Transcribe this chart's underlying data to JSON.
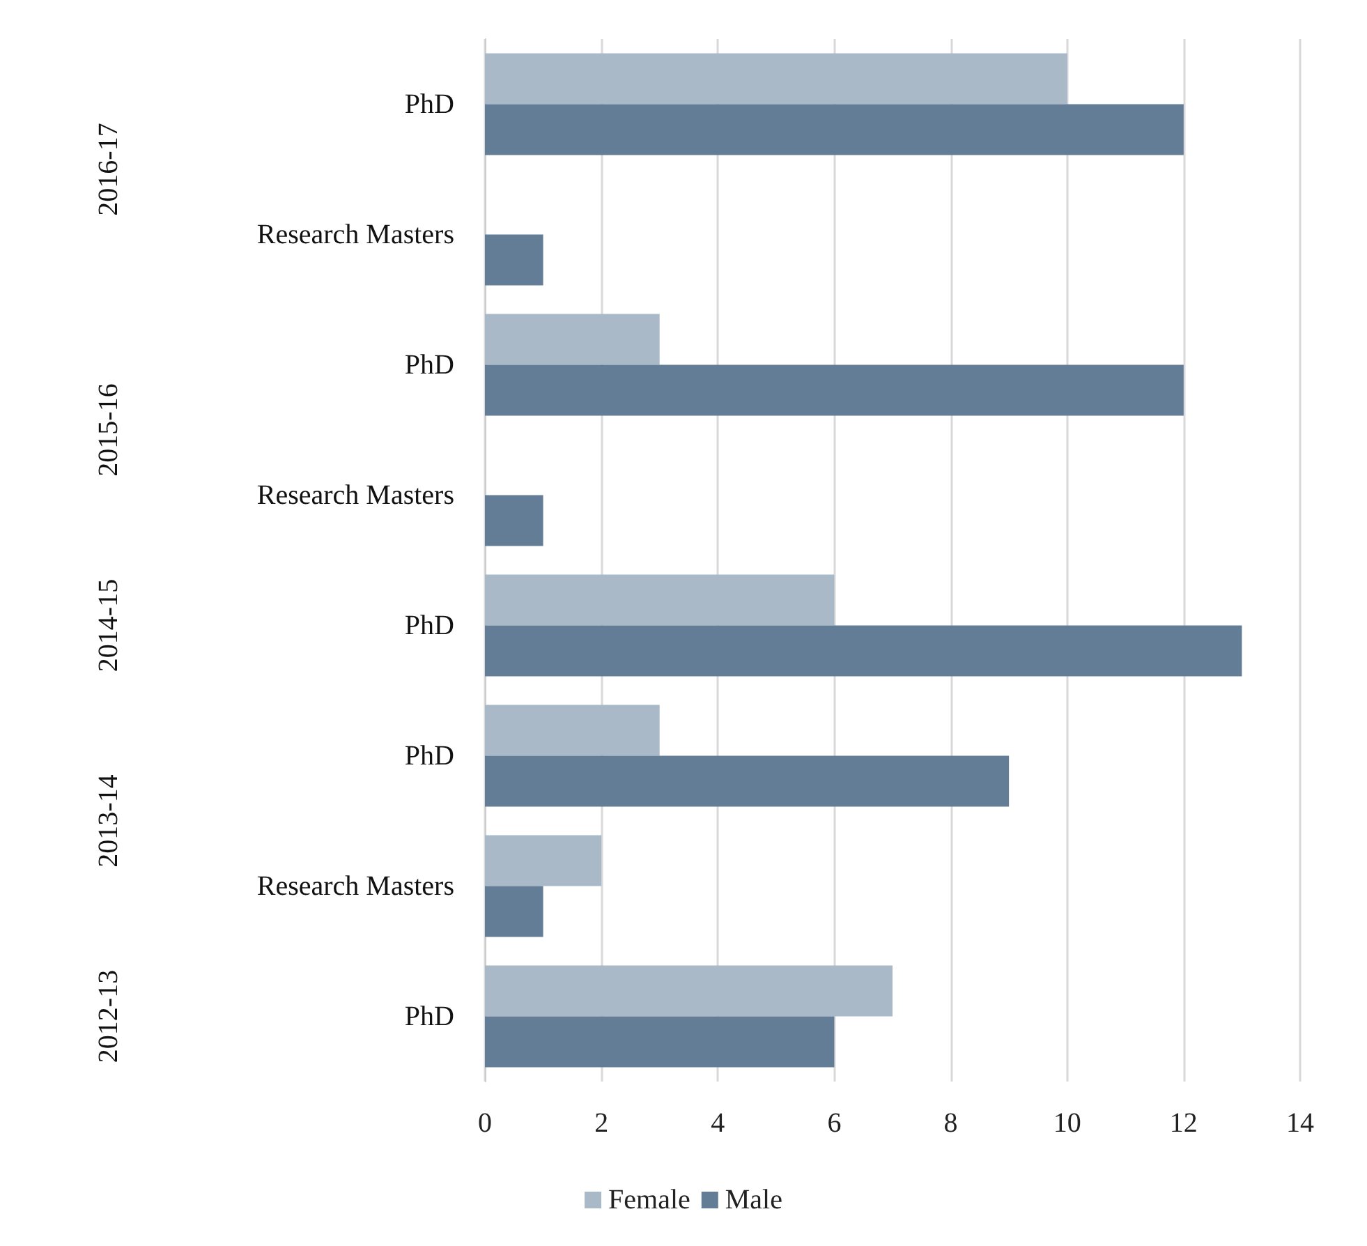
{
  "chart_data": {
    "type": "bar",
    "orientation": "horizontal",
    "categories": [
      "PhD",
      "Research Masters",
      "PhD",
      "Research Masters",
      "PhD",
      "PhD",
      "Research Masters",
      "PhD"
    ],
    "series": [
      {
        "name": "Female",
        "color": "#a9b9c7",
        "values": [
          10,
          null,
          3,
          null,
          6,
          3,
          2,
          7
        ]
      },
      {
        "name": "Male",
        "color": "#637d96",
        "values": [
          12,
          1,
          12,
          1,
          13,
          9,
          1,
          6
        ]
      }
    ],
    "xlim": [
      0,
      14
    ],
    "xticks": [
      0,
      2,
      4,
      6,
      8,
      10,
      12,
      14
    ],
    "grid": "x",
    "legend": "bottom",
    "annotations": [
      "2016-17",
      "2015-16",
      "2014-15",
      "2013-14",
      "2012-13"
    ]
  }
}
